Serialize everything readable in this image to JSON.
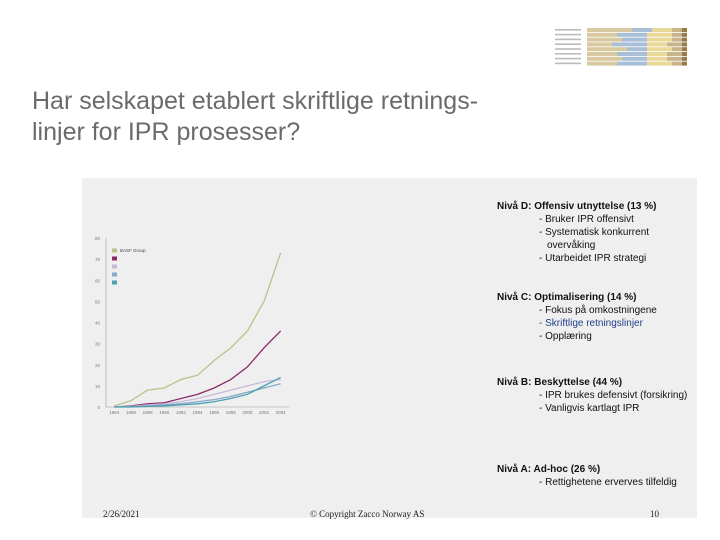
{
  "slide": {
    "title_line1": "Har selskapet etablert skriftlige retnings-",
    "title_line2": "linjer for IPR prosesser?"
  },
  "levels": [
    {
      "heading": "Nivå D: Offensiv utnyttelse (13 %)",
      "items": [
        "- Bruker IPR offensivt",
        "- Systematisk konkurrent",
        "overvåking",
        "- Utarbeidet IPR strategi"
      ]
    },
    {
      "heading": "Nivå C: Optimalisering (14 %)",
      "items": [
        "- Fokus på omkostningene",
        "- Skriftlige retningslinjer",
        "- Opplæring"
      ]
    },
    {
      "heading": "Nivå B: Beskyttelse (44 %)",
      "items": [
        "- IPR brukes defensivt (forsikring)",
        "- Vanligvis kartlagt IPR"
      ]
    },
    {
      "heading": "Nivå A: Ad-hoc (26 %)",
      "items": [
        "- Rettighetene erverves tilfeldig"
      ]
    }
  ],
  "footer": {
    "date": "2/26/2021",
    "copyright": "© Copyright Zacco Norway AS",
    "page": "10"
  },
  "chart_data": {
    "type": "line",
    "x": [
      1984,
      1986,
      1988,
      1990,
      1992,
      1994,
      1996,
      1998,
      2000,
      2002,
      2004
    ],
    "xlim": [
      1983,
      2005
    ],
    "ylim": [
      0,
      80
    ],
    "yticks": [
      0,
      10,
      20,
      30,
      40,
      50,
      60,
      70,
      80
    ],
    "legend_position": "top-left",
    "series": [
      {
        "name": "BASF Group",
        "color": "#b5c58a",
        "values": [
          0.5,
          3,
          8,
          9,
          13,
          15,
          22,
          28,
          36,
          50,
          73
        ]
      },
      {
        "name": "",
        "color": "#8a2a6a",
        "values": [
          0,
          0.5,
          1.5,
          2,
          4,
          6,
          9,
          13,
          19,
          28,
          36
        ]
      },
      {
        "name": "",
        "color": "#c9b8d8",
        "values": [
          0,
          0.3,
          1,
          1.5,
          2.5,
          4,
          6,
          8,
          10,
          12,
          13
        ]
      },
      {
        "name": "",
        "color": "#8aa8c8",
        "values": [
          0,
          0.2,
          0.5,
          1,
          1.5,
          2.5,
          3.5,
          5,
          7,
          9,
          11
        ]
      },
      {
        "name": "",
        "color": "#4aa0b0",
        "values": [
          0,
          0,
          0.3,
          0.5,
          1,
          1.5,
          2.5,
          4,
          6,
          10,
          14
        ]
      }
    ]
  },
  "colors": {
    "title": "#6b6b6b",
    "panel": "#efefef",
    "highlight_text": "#1f3f8a"
  }
}
